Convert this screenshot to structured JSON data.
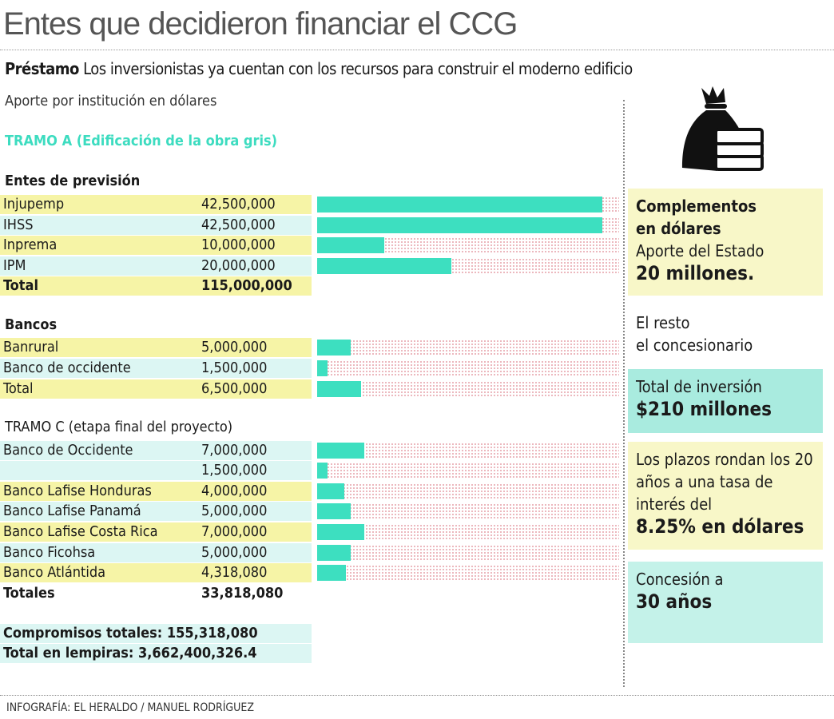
{
  "title": "Entes que decidieron financiar el CCG",
  "subtitle_bold": "Préstamo",
  "subtitle": "Los inversionistas ya cuentan con los recursos para construir el moderno edificio",
  "unit_note": "Aporte por institución en dólares",
  "tramo_a": "TRAMO A (Edificación de la obra gris)",
  "chart_data": {
    "type": "bar",
    "orientation": "horizontal",
    "xlim": [
      0,
      45000000
    ],
    "bar_color": "#3ddfc0",
    "groups": [
      {
        "title": "Entes de previsión",
        "rows": [
          {
            "label": "Injupemp",
            "value": 42500000,
            "display": "42,500,000",
            "bg": "y"
          },
          {
            "label": "IHSS",
            "value": 42500000,
            "display": "42,500,000",
            "bg": "c"
          },
          {
            "label": "Inprema",
            "value": 10000000,
            "display": "10,000,000",
            "bg": "y"
          },
          {
            "label": "IPM",
            "value": 20000000,
            "display": "20,000,000",
            "bg": "c"
          }
        ],
        "total": {
          "label": "Total",
          "display": "115,000,000",
          "bold": true
        }
      },
      {
        "title": "Bancos",
        "rows": [
          {
            "label": "Banrural",
            "value": 5000000,
            "display": "5,000,000",
            "bg": "y"
          },
          {
            "label": "Banco de occidente",
            "value": 1500000,
            "display": "1,500,000",
            "bg": "c"
          },
          {
            "label": "Total",
            "value": 6500000,
            "display": "6,500,000",
            "bg": "y"
          }
        ]
      },
      {
        "title": "TRAMO C (etapa final del proyecto)",
        "rows": [
          {
            "label": "Banco de Occidente",
            "value": 7000000,
            "display": "7,000,000",
            "bg": "c"
          },
          {
            "label": "",
            "value": 1500000,
            "display": "1,500,000",
            "bg": "c"
          },
          {
            "label": "Banco Lafise Honduras",
            "value": 4000000,
            "display": "4,000,000",
            "bg": "y"
          },
          {
            "label": "Banco Lafise Panamá",
            "value": 5000000,
            "display": "5,000,000",
            "bg": "c"
          },
          {
            "label": "Banco Lafise Costa Rica",
            "value": 7000000,
            "display": "7,000,000",
            "bg": "y"
          },
          {
            "label": "Banco Ficohsa",
            "value": 5000000,
            "display": "5,000,000",
            "bg": "c"
          },
          {
            "label": "Banco Atlántida",
            "value": 4318080,
            "display": "4,318,080",
            "bg": "y"
          }
        ],
        "total": {
          "label": "Totales",
          "display": "33,818,080",
          "bold": true
        }
      }
    ]
  },
  "summary": [
    "Compromisos totales: 155,318,080",
    "Total en lempiras: 3,662,400,326.4"
  ],
  "side": {
    "icon": "money-bag-icon",
    "box1_bold": "Complementos en dólares",
    "box1_text": "Aporte del Estado",
    "box1_big": "20 millones.",
    "rest1": "El resto",
    "rest2": "el concesionario",
    "box2_text": "Total de inversión",
    "box2_big": "$210 millones",
    "box3_text": "Los plazos rondan los 20 años a una tasa de interés del",
    "box3_big": "8.25% en dólares",
    "box4_text": "Concesión a",
    "box4_big": "30 años"
  },
  "credit": "INFOGRAFÍA: EL HERALDO / MANUEL RODRÍGUEZ"
}
